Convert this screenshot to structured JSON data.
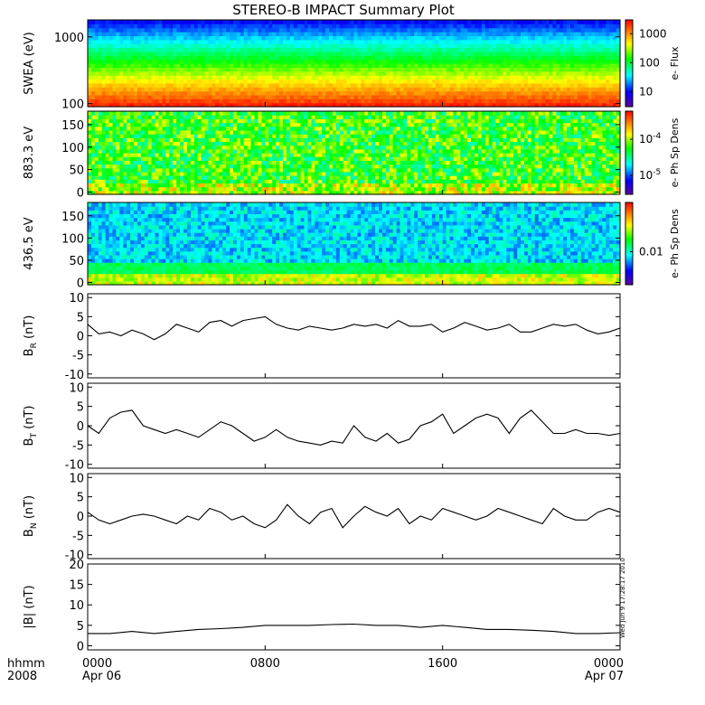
{
  "title": "STEREO-B IMPACT Summary Plot",
  "time_axis": {
    "row_label_1": "hhmm",
    "row_label_2": "2008",
    "ticks": [
      {
        "hours": 0,
        "time": "0000",
        "date": "Apr 06"
      },
      {
        "hours": 8,
        "time": "0800",
        "date": ""
      },
      {
        "hours": 16,
        "time": "1600",
        "date": ""
      },
      {
        "hours": 24,
        "time": "0000",
        "date": "Apr 07"
      }
    ]
  },
  "timestamp": "Wed Jun  9 17:28:17 2010",
  "colors": {
    "line": "#000000",
    "colorscale": [
      "#5a00a0",
      "#0000ff",
      "#00ffff",
      "#00ff00",
      "#ffff00",
      "#ff8000",
      "#ff0000"
    ]
  },
  "chart_data": [
    {
      "type": "heatmap",
      "ylabel": "SWEA (eV)",
      "yscale": "log",
      "ylim": [
        90,
        1800
      ],
      "yticks": [
        {
          "v": 100,
          "label": "100"
        },
        {
          "v": 1000,
          "label": "1000"
        }
      ],
      "xlim_hours": [
        0,
        24
      ],
      "colorbar": {
        "label": "e- Flux",
        "scale": "log",
        "range": [
          3,
          3000
        ],
        "ticks": [
          {
            "v": 10,
            "label": "10"
          },
          {
            "v": 100,
            "label": "100"
          },
          {
            "v": 1000,
            "label": "1000"
          }
        ]
      }
    },
    {
      "type": "heatmap",
      "ylabel": "883.3 eV",
      "ylim": [
        -5,
        180
      ],
      "yticks": [
        0,
        50,
        100,
        150
      ],
      "xlim_hours": [
        0,
        24
      ],
      "colorbar": {
        "label": "e- Ph Sp Dens",
        "scale": "log",
        "range": [
          3e-06,
          0.0006
        ],
        "ticks": [
          {
            "v": 1e-05,
            "label": "10",
            "exp": "-5"
          },
          {
            "v": 0.0001,
            "label": "10",
            "exp": "-4"
          }
        ]
      }
    },
    {
      "type": "heatmap",
      "ylabel": "436.5 eV",
      "ylim": [
        -5,
        180
      ],
      "yticks": [
        0,
        50,
        100,
        150
      ],
      "xlim_hours": [
        0,
        24
      ],
      "colorbar": {
        "label": "e- Ph Sp Dens",
        "scale": "log",
        "range": [
          0.003,
          0.06
        ],
        "ticks": [
          {
            "v": 0.01,
            "label": "0.01"
          }
        ]
      }
    },
    {
      "type": "line",
      "ylabel": "B",
      "ylabel_sub": "R",
      "ylabel_unit": "(nT)",
      "ylim": [
        -11,
        11
      ],
      "yticks": [
        -10,
        -5,
        0,
        5,
        10
      ],
      "xlim_hours": [
        0,
        24
      ],
      "x_hours": [
        0,
        0.5,
        1,
        1.5,
        2,
        2.5,
        3,
        3.5,
        4,
        4.5,
        5,
        5.5,
        6,
        6.5,
        7,
        7.5,
        8,
        8.5,
        9,
        9.5,
        10,
        10.5,
        11,
        11.5,
        12,
        12.5,
        13,
        13.5,
        14,
        14.5,
        15,
        15.5,
        16,
        16.5,
        17,
        17.5,
        18,
        18.5,
        19,
        19.5,
        20,
        20.5,
        21,
        21.5,
        22,
        22.5,
        23,
        23.5,
        24
      ],
      "y": [
        3,
        0.5,
        1,
        0,
        1.5,
        0.5,
        -1,
        0.5,
        3,
        2,
        1,
        3.5,
        4,
        2.5,
        4,
        4.5,
        5,
        3,
        2,
        1.5,
        2.5,
        2,
        1.5,
        2,
        3,
        2.5,
        3,
        2,
        4,
        2.5,
        2.5,
        3,
        1,
        2,
        3.5,
        2.5,
        1.5,
        2,
        3,
        1,
        1,
        2,
        3,
        2.5,
        3,
        1.5,
        0.5,
        1,
        2
      ]
    },
    {
      "type": "line",
      "ylabel": "B",
      "ylabel_sub": "T",
      "ylabel_unit": "(nT)",
      "ylim": [
        -11,
        11
      ],
      "yticks": [
        -10,
        -5,
        0,
        5,
        10
      ],
      "xlim_hours": [
        0,
        24
      ],
      "x_hours": [
        0,
        0.5,
        1,
        1.5,
        2,
        2.5,
        3,
        3.5,
        4,
        4.5,
        5,
        5.5,
        6,
        6.5,
        7,
        7.5,
        8,
        8.5,
        9,
        9.5,
        10,
        10.5,
        11,
        11.5,
        12,
        12.5,
        13,
        13.5,
        14,
        14.5,
        15,
        15.5,
        16,
        16.5,
        17,
        17.5,
        18,
        18.5,
        19,
        19.5,
        20,
        20.5,
        21,
        21.5,
        22,
        22.5,
        23,
        23.5,
        24
      ],
      "y": [
        0,
        -2,
        2,
        3.5,
        4,
        0,
        -1,
        -2,
        -1,
        -2,
        -3,
        -1,
        1,
        0,
        -2,
        -4,
        -3,
        -1,
        -3,
        -4,
        -4.5,
        -5,
        -4,
        -4.5,
        0,
        -3,
        -4,
        -2,
        -4.5,
        -3.5,
        0,
        1,
        3,
        -2,
        0,
        2,
        3,
        2,
        -2,
        2,
        4,
        1,
        -2,
        -2,
        -1,
        -2,
        -2,
        -2.5,
        -2
      ]
    },
    {
      "type": "line",
      "ylabel": "B",
      "ylabel_sub": "N",
      "ylabel_unit": "(nT)",
      "ylim": [
        -11,
        11
      ],
      "yticks": [
        -10,
        -5,
        0,
        5,
        10
      ],
      "xlim_hours": [
        0,
        24
      ],
      "x_hours": [
        0,
        0.5,
        1,
        1.5,
        2,
        2.5,
        3,
        3.5,
        4,
        4.5,
        5,
        5.5,
        6,
        6.5,
        7,
        7.5,
        8,
        8.5,
        9,
        9.5,
        10,
        10.5,
        11,
        11.5,
        12,
        12.5,
        13,
        13.5,
        14,
        14.5,
        15,
        15.5,
        16,
        16.5,
        17,
        17.5,
        18,
        18.5,
        19,
        19.5,
        20,
        20.5,
        21,
        21.5,
        22,
        22.5,
        23,
        23.5,
        24
      ],
      "y": [
        1,
        -1,
        -2,
        -1,
        0,
        0.5,
        0,
        -1,
        -2,
        0,
        -1,
        2,
        1,
        -1,
        0,
        -2,
        -3,
        -1,
        3,
        0,
        -2,
        1,
        2,
        -3,
        0,
        2.5,
        1,
        0,
        2,
        -2,
        0,
        -1,
        2,
        1,
        0,
        -1,
        0,
        2,
        1,
        0,
        -1,
        -2,
        2,
        0,
        -1,
        -1,
        1,
        2,
        1
      ]
    },
    {
      "type": "line",
      "ylabel": "|B|",
      "ylabel_unit": "(nT)",
      "ylim": [
        -1,
        20
      ],
      "yticks": [
        0,
        5,
        10,
        15,
        20
      ],
      "xlim_hours": [
        0,
        24
      ],
      "x_hours": [
        0,
        1,
        2,
        3,
        4,
        5,
        6,
        7,
        8,
        9,
        10,
        11,
        12,
        13,
        14,
        15,
        16,
        17,
        18,
        19,
        20,
        21,
        22,
        23,
        24
      ],
      "y": [
        3,
        3,
        3.5,
        3,
        3.5,
        4,
        4.2,
        4.5,
        5,
        5,
        5,
        5.2,
        5.3,
        5,
        5,
        4.5,
        5,
        4.5,
        4,
        4,
        3.8,
        3.5,
        3,
        3,
        3.2
      ]
    }
  ]
}
